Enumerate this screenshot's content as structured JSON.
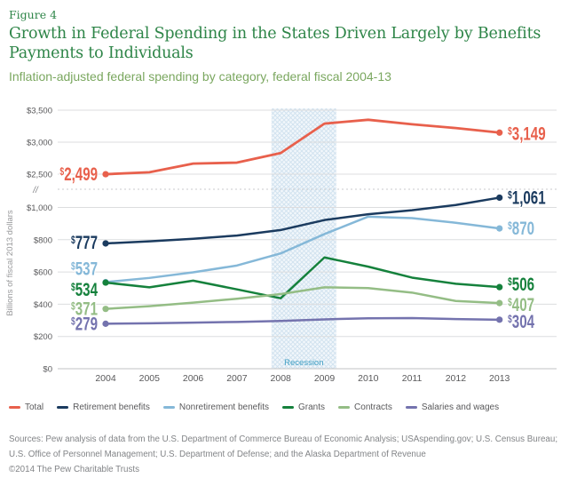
{
  "header": {
    "figure_label": "Figure 4",
    "title_lines": [
      "Growth in Federal Spending in the States Driven Largely by Benefits",
      "Payments to Individuals"
    ],
    "subtitle": "Inflation-adjusted federal spending by category, federal fiscal 2004-13"
  },
  "chart_data": {
    "type": "line",
    "x": [
      2004,
      2005,
      2006,
      2007,
      2008,
      2009,
      2010,
      2011,
      2012,
      2013
    ],
    "ylabel": "Billions of fiscal 2013 dollars",
    "grid": true,
    "legend_position": "bottom",
    "y_axis": {
      "lower_ticks": [
        {
          "value": 0,
          "label": "$0"
        },
        {
          "value": 200,
          "label": "$200"
        },
        {
          "value": 400,
          "label": "$400"
        },
        {
          "value": 600,
          "label": "$600"
        },
        {
          "value": 800,
          "label": "$800"
        },
        {
          "value": 1000,
          "label": "$1,000"
        }
      ],
      "upper_ticks": [
        {
          "value": 2500,
          "label": "$2,500"
        },
        {
          "value": 3000,
          "label": "$3,000"
        },
        {
          "value": 3500,
          "label": "$3,500"
        }
      ],
      "break_label": "//"
    },
    "recession_band": {
      "label": "Recession",
      "x_start": 2007.79,
      "x_end": 2009.27,
      "label_color": "#3f9fc4"
    },
    "series": [
      {
        "name": "Total",
        "color": "#e8604c",
        "line_width": 2.8,
        "values": [
          2499,
          2530,
          2665,
          2680,
          2830,
          3290,
          3350,
          3280,
          3220,
          3149
        ],
        "start_label": "$2,499",
        "end_label": "$3,149",
        "start_label_dy": 0,
        "end_label_dy": 1
      },
      {
        "name": "Retirement benefits",
        "color": "#1b3b5f",
        "line_width": 2.5,
        "values": [
          777,
          790,
          806,
          826,
          860,
          922,
          958,
          983,
          1015,
          1061
        ],
        "start_label": "$777",
        "end_label": "$1,061",
        "start_label_dy": -1,
        "end_label_dy": 0
      },
      {
        "name": "Nonretirement benefits",
        "color": "#85b8d8",
        "line_width": 2.5,
        "values": [
          537,
          563,
          598,
          640,
          715,
          835,
          943,
          934,
          905,
          870
        ],
        "start_label": "$537",
        "end_label": "$870",
        "start_label_dy": -15,
        "end_label_dy": 0
      },
      {
        "name": "Grants",
        "color": "#15813c",
        "line_width": 2.5,
        "values": [
          534,
          505,
          546,
          492,
          437,
          690,
          633,
          565,
          527,
          506
        ],
        "start_label": "$534",
        "end_label": "$506",
        "start_label_dy": 8,
        "end_label_dy": -3
      },
      {
        "name": "Contracts",
        "color": "#94bd85",
        "line_width": 2.5,
        "values": [
          371,
          388,
          410,
          434,
          463,
          505,
          500,
          472,
          420,
          407
        ],
        "start_label": "$371",
        "end_label": "$407",
        "start_label_dy": 0,
        "end_label_dy": 2
      },
      {
        "name": "Salaries and wages",
        "color": "#7473ae",
        "line_width": 2.5,
        "values": [
          279,
          282,
          286,
          290,
          296,
          306,
          313,
          314,
          308,
          304
        ],
        "start_label": "$279",
        "end_label": "$304",
        "start_label_dy": 0,
        "end_label_dy": 2
      }
    ]
  },
  "footer": {
    "sources_lines": [
      "Sources: Pew analysis of data from the U.S. Department of Commerce Bureau of Economic Analysis; USAspending.gov; U.S. Census Bureau;",
      "U.S. Office of Personnel Management; U.S. Department of Defense; and the Alaska Department of Revenue"
    ],
    "copyright": "©2014 The Pew Charitable Trusts"
  }
}
